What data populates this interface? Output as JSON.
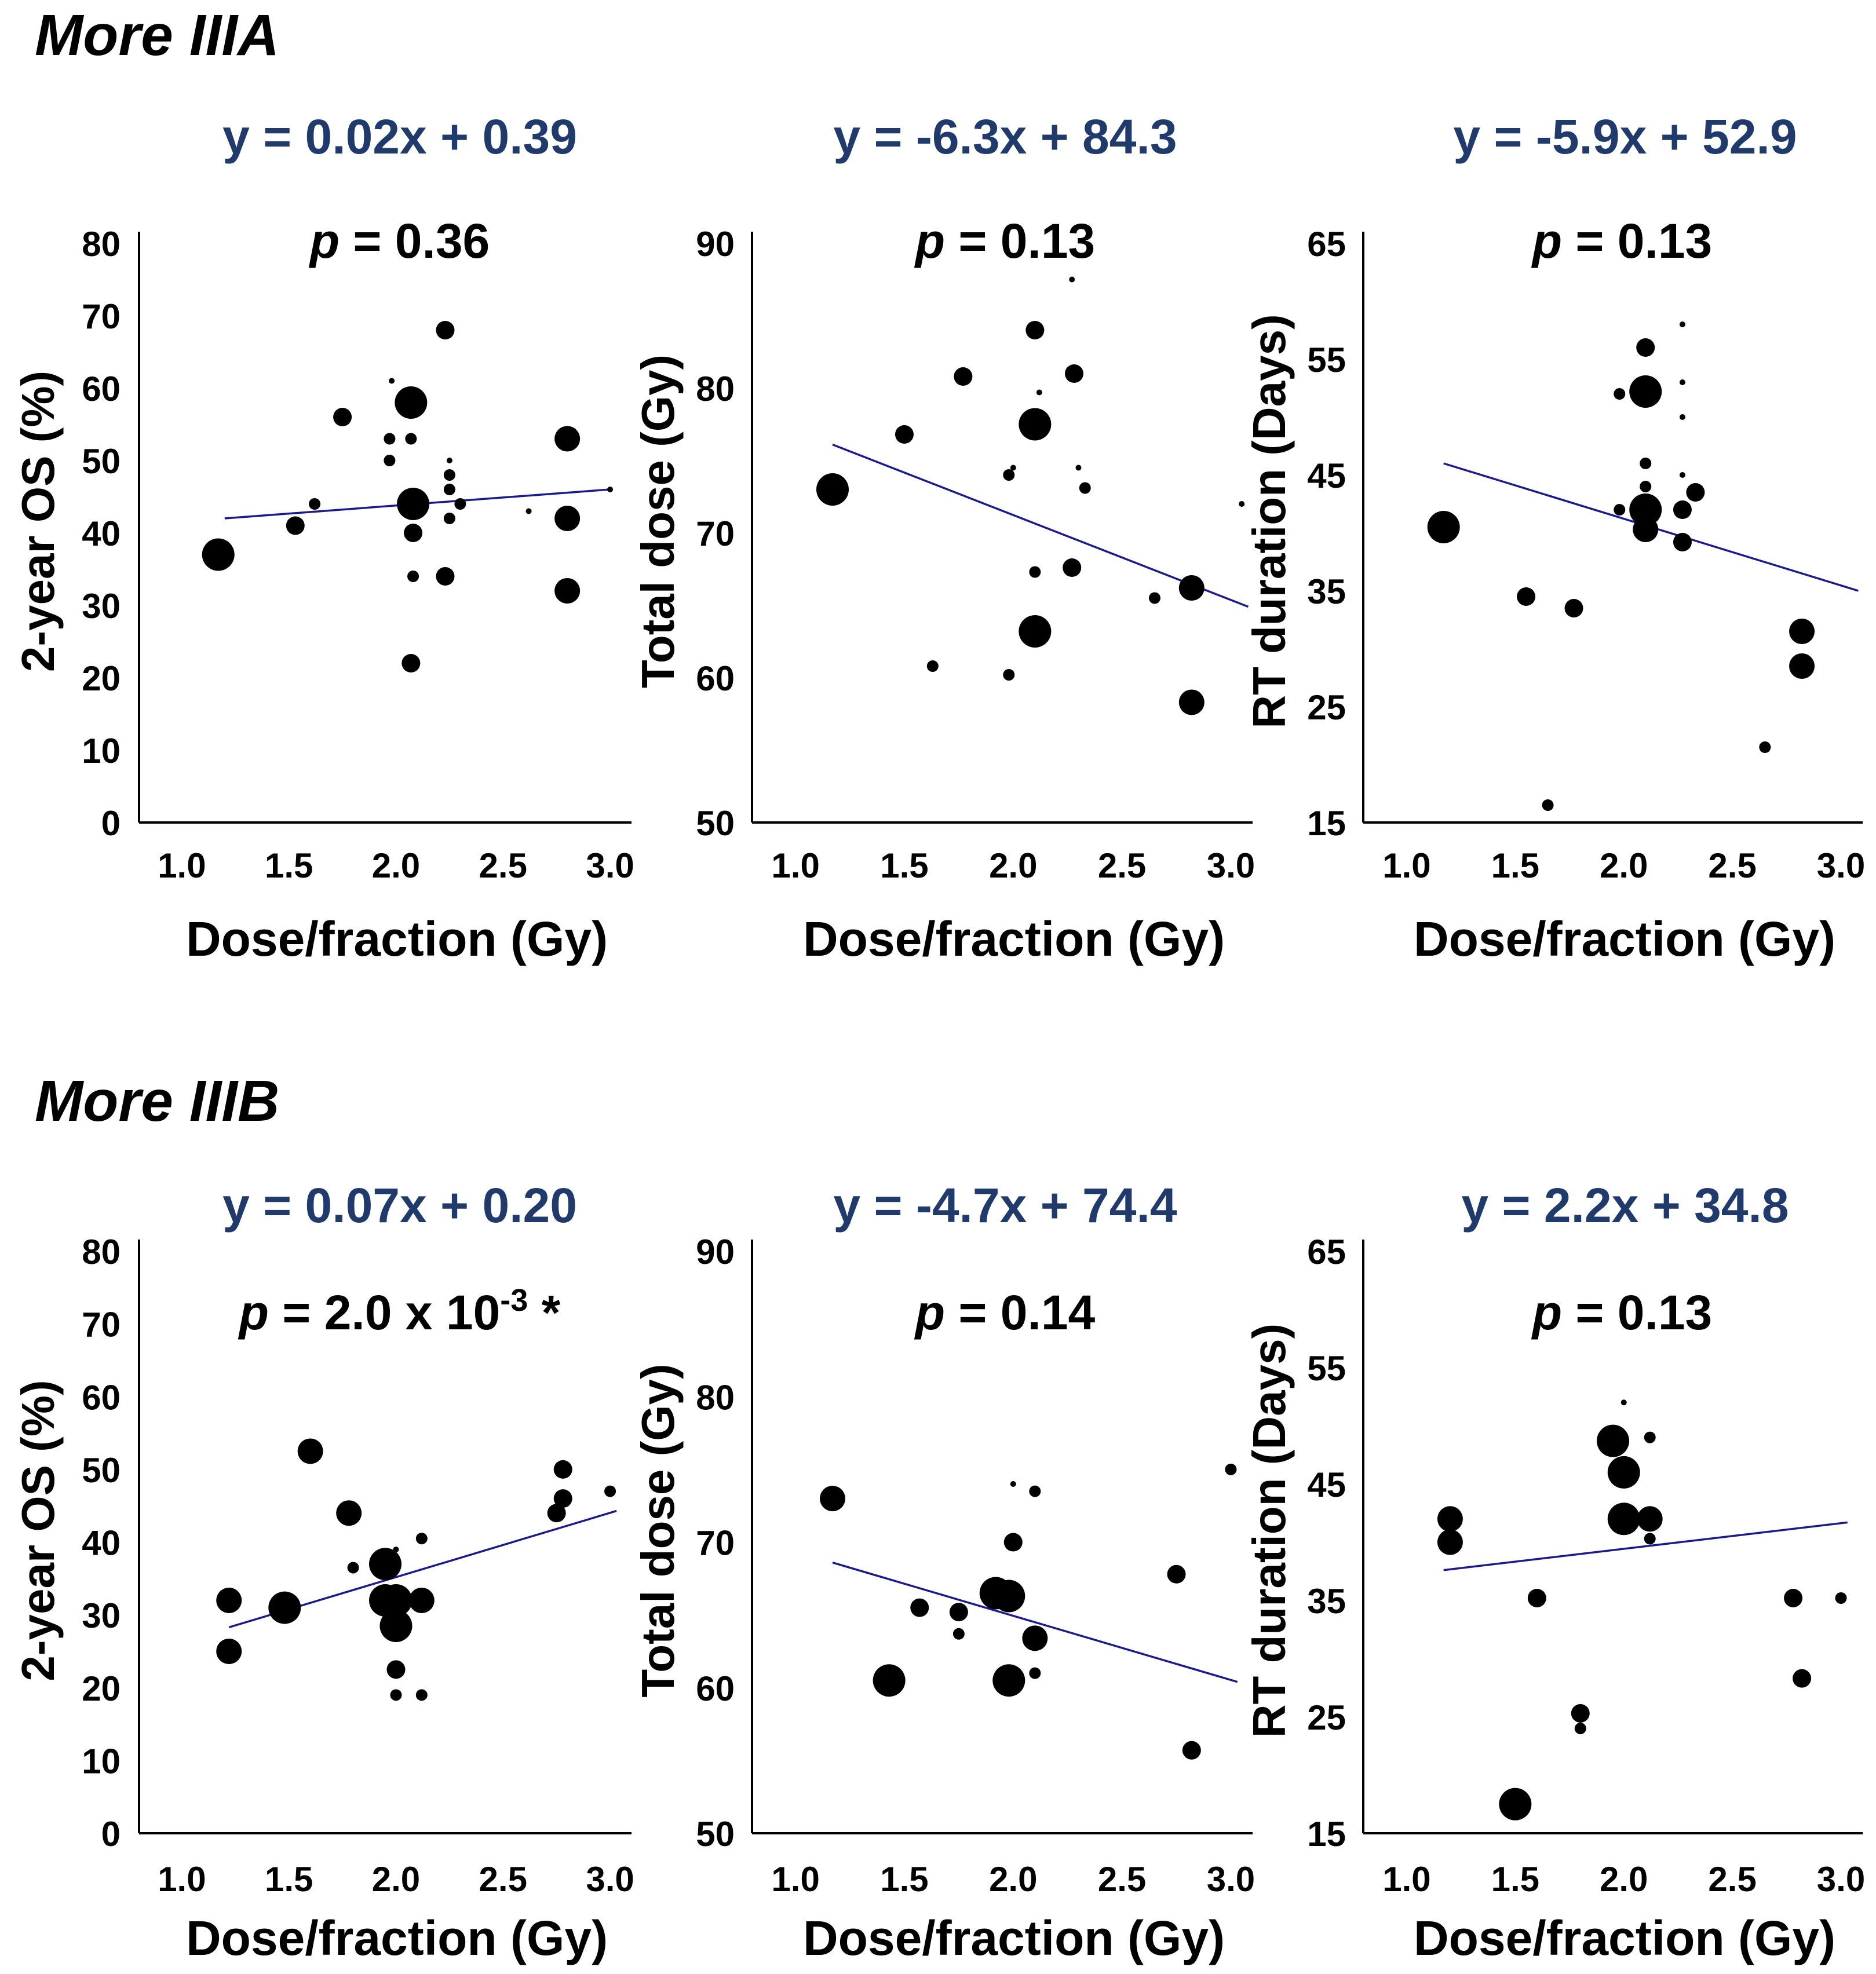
{
  "sections": [
    {
      "title": "More IIIA"
    },
    {
      "title": "More IIIB"
    }
  ],
  "chart_data": [
    {
      "type": "scatter",
      "section": "More IIIA",
      "equation": "y = 0.02x + 0.39",
      "p_value": {
        "prefix": "p",
        "text": " = 0.36",
        "superscript": "",
        "suffix": ""
      },
      "xlabel": "Dose/fraction (Gy)",
      "ylabel": "2-year OS (%)",
      "xlim": [
        0.8,
        3.1
      ],
      "ylim": [
        0,
        80
      ],
      "xticks": [
        "1.0",
        "1.5",
        "2.0",
        "2.5",
        "3.0"
      ],
      "yticks": [
        "0",
        "10",
        "20",
        "30",
        "40",
        "50",
        "60",
        "70",
        "80"
      ],
      "regression": {
        "x": [
          1.2,
          3.0
        ],
        "y": [
          42,
          46
        ]
      },
      "points": [
        {
          "x": 1.17,
          "y": 37,
          "size": "xl"
        },
        {
          "x": 1.53,
          "y": 41,
          "size": "m"
        },
        {
          "x": 1.62,
          "y": 44,
          "size": "s"
        },
        {
          "x": 1.75,
          "y": 56,
          "size": "m"
        },
        {
          "x": 1.97,
          "y": 53,
          "size": "s"
        },
        {
          "x": 1.97,
          "y": 50,
          "size": "s"
        },
        {
          "x": 1.98,
          "y": 61,
          "size": "xs"
        },
        {
          "x": 2.07,
          "y": 58,
          "size": "xl"
        },
        {
          "x": 2.07,
          "y": 53,
          "size": "s"
        },
        {
          "x": 2.08,
          "y": 44,
          "size": "xl"
        },
        {
          "x": 2.08,
          "y": 40,
          "size": "m"
        },
        {
          "x": 2.08,
          "y": 34,
          "size": "s"
        },
        {
          "x": 2.07,
          "y": 22,
          "size": "m"
        },
        {
          "x": 2.23,
          "y": 68,
          "size": "m"
        },
        {
          "x": 2.23,
          "y": 34,
          "size": "m"
        },
        {
          "x": 2.25,
          "y": 50,
          "size": "xs"
        },
        {
          "x": 2.25,
          "y": 48,
          "size": "s"
        },
        {
          "x": 2.25,
          "y": 46,
          "size": "s"
        },
        {
          "x": 2.25,
          "y": 42,
          "size": "s"
        },
        {
          "x": 2.3,
          "y": 44,
          "size": "s"
        },
        {
          "x": 2.62,
          "y": 43,
          "size": "xs"
        },
        {
          "x": 2.8,
          "y": 53,
          "size": "l"
        },
        {
          "x": 2.8,
          "y": 42,
          "size": "l"
        },
        {
          "x": 2.8,
          "y": 32,
          "size": "l"
        },
        {
          "x": 3.0,
          "y": 46,
          "size": "xs"
        }
      ]
    },
    {
      "type": "scatter",
      "section": "More IIIA",
      "equation": "y = -6.3x + 84.3",
      "p_value": {
        "prefix": "p",
        "text": " = 0.13",
        "superscript": "",
        "suffix": ""
      },
      "xlabel": "Dose/fraction (Gy)",
      "ylabel": "Total dose (Gy)",
      "xlim": [
        0.8,
        3.1
      ],
      "ylim": [
        50,
        90
      ],
      "xticks": [
        "1.0",
        "1.5",
        "2.0",
        "2.5",
        "3.0"
      ],
      "yticks": [
        "50",
        "60",
        "70",
        "80",
        "90"
      ],
      "regression": {
        "x": [
          1.17,
          3.08
        ],
        "y": [
          76.1,
          64.9
        ]
      },
      "points": [
        {
          "x": 1.17,
          "y": 73,
          "size": "xl"
        },
        {
          "x": 1.5,
          "y": 76.8,
          "size": "m"
        },
        {
          "x": 1.63,
          "y": 60.8,
          "size": "s"
        },
        {
          "x": 1.77,
          "y": 80.8,
          "size": "m"
        },
        {
          "x": 1.98,
          "y": 74,
          "size": "s"
        },
        {
          "x": 2.0,
          "y": 74.5,
          "size": "xs"
        },
        {
          "x": 1.98,
          "y": 60.2,
          "size": "s"
        },
        {
          "x": 2.1,
          "y": 84,
          "size": "m"
        },
        {
          "x": 2.1,
          "y": 77.5,
          "size": "xl"
        },
        {
          "x": 2.1,
          "y": 67.3,
          "size": "s"
        },
        {
          "x": 2.1,
          "y": 63.2,
          "size": "xl"
        },
        {
          "x": 2.12,
          "y": 79.7,
          "size": "xs"
        },
        {
          "x": 2.27,
          "y": 87.5,
          "size": "xs"
        },
        {
          "x": 2.28,
          "y": 81,
          "size": "m"
        },
        {
          "x": 2.27,
          "y": 67.6,
          "size": "m"
        },
        {
          "x": 2.3,
          "y": 74.5,
          "size": "xs"
        },
        {
          "x": 2.33,
          "y": 73.1,
          "size": "s"
        },
        {
          "x": 2.65,
          "y": 65.5,
          "size": "s"
        },
        {
          "x": 2.82,
          "y": 66.2,
          "size": "l"
        },
        {
          "x": 2.82,
          "y": 58.3,
          "size": "l"
        },
        {
          "x": 3.05,
          "y": 72,
          "size": "xs"
        }
      ]
    },
    {
      "type": "scatter",
      "section": "More IIIA",
      "equation": "y = -5.9x + 52.9",
      "p_value": {
        "prefix": "p",
        "text": " = 0.13",
        "superscript": "",
        "suffix": ""
      },
      "xlabel": "Dose/fraction (Gy)",
      "ylabel": "RT duration (Days)",
      "xlim": [
        0.8,
        3.1
      ],
      "ylim": [
        15,
        65
      ],
      "xticks": [
        "1.0",
        "1.5",
        "2.0",
        "2.5",
        "3.0"
      ],
      "yticks": [
        "15",
        "25",
        "35",
        "45",
        "55",
        "65"
      ],
      "regression": {
        "x": [
          1.17,
          3.08
        ],
        "y": [
          46,
          35
        ]
      },
      "points": [
        {
          "x": 1.17,
          "y": 40.5,
          "size": "xl"
        },
        {
          "x": 1.55,
          "y": 34.5,
          "size": "m"
        },
        {
          "x": 1.65,
          "y": 16.5,
          "size": "s"
        },
        {
          "x": 1.77,
          "y": 33.5,
          "size": "m"
        },
        {
          "x": 1.98,
          "y": 52,
          "size": "s"
        },
        {
          "x": 1.98,
          "y": 42,
          "size": "s"
        },
        {
          "x": 2.1,
          "y": 56,
          "size": "m"
        },
        {
          "x": 2.1,
          "y": 52.2,
          "size": "xl"
        },
        {
          "x": 2.1,
          "y": 46,
          "size": "s"
        },
        {
          "x": 2.1,
          "y": 44,
          "size": "s"
        },
        {
          "x": 2.1,
          "y": 42,
          "size": "xl"
        },
        {
          "x": 2.1,
          "y": 40.3,
          "size": "l"
        },
        {
          "x": 2.27,
          "y": 58,
          "size": "xs"
        },
        {
          "x": 2.27,
          "y": 53,
          "size": "xs"
        },
        {
          "x": 2.27,
          "y": 50,
          "size": "xs"
        },
        {
          "x": 2.27,
          "y": 45,
          "size": "xs"
        },
        {
          "x": 2.27,
          "y": 42,
          "size": "m"
        },
        {
          "x": 2.27,
          "y": 39.2,
          "size": "m"
        },
        {
          "x": 2.33,
          "y": 43.5,
          "size": "m"
        },
        {
          "x": 2.65,
          "y": 21.5,
          "size": "s"
        },
        {
          "x": 2.82,
          "y": 31.5,
          "size": "l"
        },
        {
          "x": 2.82,
          "y": 28.5,
          "size": "l"
        }
      ]
    },
    {
      "type": "scatter",
      "section": "More IIIB",
      "equation": "y = 0.07x + 0.20",
      "p_value": {
        "prefix": "p",
        "text": " = 2.0 x 10",
        "superscript": "-3",
        "suffix": " *"
      },
      "xlabel": "Dose/fraction (Gy)",
      "ylabel": "2-year OS (%)",
      "xlim": [
        0.8,
        3.1
      ],
      "ylim": [
        0,
        80
      ],
      "xticks": [
        "1.0",
        "1.5",
        "2.0",
        "2.5",
        "3.0"
      ],
      "yticks": [
        "0",
        "10",
        "20",
        "30",
        "40",
        "50",
        "60",
        "70",
        "80"
      ],
      "regression": {
        "x": [
          1.22,
          3.03
        ],
        "y": [
          28.3,
          44.3
        ]
      },
      "points": [
        {
          "x": 1.22,
          "y": 32,
          "size": "l"
        },
        {
          "x": 1.22,
          "y": 25,
          "size": "l"
        },
        {
          "x": 1.48,
          "y": 31,
          "size": "xl"
        },
        {
          "x": 1.6,
          "y": 52.5,
          "size": "l"
        },
        {
          "x": 1.78,
          "y": 44,
          "size": "l"
        },
        {
          "x": 1.8,
          "y": 36.5,
          "size": "s"
        },
        {
          "x": 1.95,
          "y": 37,
          "size": "xl"
        },
        {
          "x": 1.95,
          "y": 32,
          "size": "xl"
        },
        {
          "x": 2.0,
          "y": 32,
          "size": "xl"
        },
        {
          "x": 2.0,
          "y": 28.5,
          "size": "xl"
        },
        {
          "x": 2.0,
          "y": 22.5,
          "size": "m"
        },
        {
          "x": 2.0,
          "y": 19,
          "size": "s"
        },
        {
          "x": 2.0,
          "y": 39,
          "size": "xs"
        },
        {
          "x": 2.12,
          "y": 32,
          "size": "l"
        },
        {
          "x": 2.12,
          "y": 40.5,
          "size": "s"
        },
        {
          "x": 2.12,
          "y": 19,
          "size": "s"
        },
        {
          "x": 2.75,
          "y": 44,
          "size": "m"
        },
        {
          "x": 2.78,
          "y": 46,
          "size": "m"
        },
        {
          "x": 2.78,
          "y": 50,
          "size": "m"
        },
        {
          "x": 3.0,
          "y": 47,
          "size": "s"
        }
      ]
    },
    {
      "type": "scatter",
      "section": "More IIIB",
      "equation": "y = -4.7x + 74.4",
      "p_value": {
        "prefix": "p",
        "text": " = 0.14",
        "superscript": "",
        "suffix": ""
      },
      "xlabel": "Dose/fraction (Gy)",
      "ylabel": "Total dose (Gy)",
      "xlim": [
        0.8,
        3.1
      ],
      "ylim": [
        50,
        90
      ],
      "xticks": [
        "1.0",
        "1.5",
        "2.0",
        "2.5",
        "3.0"
      ],
      "yticks": [
        "50",
        "60",
        "70",
        "80",
        "90"
      ],
      "regression": {
        "x": [
          1.17,
          3.03
        ],
        "y": [
          68.6,
          60.4
        ]
      },
      "points": [
        {
          "x": 1.17,
          "y": 73,
          "size": "l"
        },
        {
          "x": 1.43,
          "y": 60.5,
          "size": "xl"
        },
        {
          "x": 1.57,
          "y": 65.5,
          "size": "m"
        },
        {
          "x": 1.75,
          "y": 65.2,
          "size": "m"
        },
        {
          "x": 1.75,
          "y": 63.7,
          "size": "s"
        },
        {
          "x": 1.92,
          "y": 66.5,
          "size": "xl"
        },
        {
          "x": 1.98,
          "y": 66.3,
          "size": "xl"
        },
        {
          "x": 2.0,
          "y": 70,
          "size": "m"
        },
        {
          "x": 1.98,
          "y": 60.5,
          "size": "xl"
        },
        {
          "x": 2.0,
          "y": 74,
          "size": "xs"
        },
        {
          "x": 2.1,
          "y": 73.5,
          "size": "s"
        },
        {
          "x": 2.1,
          "y": 63.4,
          "size": "l"
        },
        {
          "x": 2.1,
          "y": 61,
          "size": "s"
        },
        {
          "x": 2.75,
          "y": 67.8,
          "size": "m"
        },
        {
          "x": 2.82,
          "y": 55.7,
          "size": "m"
        },
        {
          "x": 3.0,
          "y": 75,
          "size": "s"
        }
      ]
    },
    {
      "type": "scatter",
      "section": "More IIIB",
      "equation": "y = 2.2x + 34.8",
      "p_value": {
        "prefix": "p",
        "text": " = 0.13",
        "superscript": "",
        "suffix": ""
      },
      "xlabel": "Dose/fraction (Gy)",
      "ylabel": "RT duration (Days)",
      "xlim": [
        0.8,
        3.1
      ],
      "ylim": [
        15,
        65
      ],
      "xticks": [
        "1.0",
        "1.5",
        "2.0",
        "2.5",
        "3.0"
      ],
      "yticks": [
        "15",
        "25",
        "35",
        "45",
        "55",
        "65"
      ],
      "regression": {
        "x": [
          1.17,
          3.03
        ],
        "y": [
          37.6,
          41.7
        ]
      },
      "points": [
        {
          "x": 1.2,
          "y": 42,
          "size": "l"
        },
        {
          "x": 1.2,
          "y": 40,
          "size": "l"
        },
        {
          "x": 1.5,
          "y": 17.5,
          "size": "xl"
        },
        {
          "x": 1.6,
          "y": 35.2,
          "size": "m"
        },
        {
          "x": 1.8,
          "y": 25.3,
          "size": "m"
        },
        {
          "x": 1.8,
          "y": 24,
          "size": "s"
        },
        {
          "x": 1.95,
          "y": 48.7,
          "size": "xl"
        },
        {
          "x": 2.0,
          "y": 46,
          "size": "xl"
        },
        {
          "x": 2.0,
          "y": 42,
          "size": "xl"
        },
        {
          "x": 2.0,
          "y": 52,
          "size": "xs"
        },
        {
          "x": 2.12,
          "y": 49,
          "size": "s"
        },
        {
          "x": 2.12,
          "y": 42,
          "size": "l"
        },
        {
          "x": 2.12,
          "y": 40.3,
          "size": "s"
        },
        {
          "x": 2.78,
          "y": 35.2,
          "size": "m"
        },
        {
          "x": 2.82,
          "y": 28.3,
          "size": "m"
        },
        {
          "x": 3.0,
          "y": 35.2,
          "size": "s"
        }
      ]
    }
  ]
}
